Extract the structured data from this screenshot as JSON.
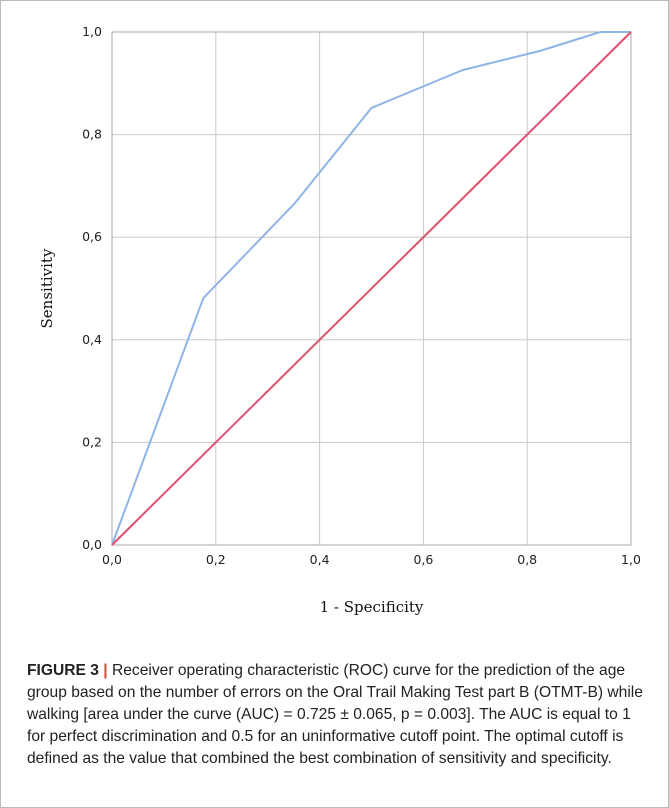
{
  "chart_data": {
    "type": "line",
    "xlabel": "1 - Specificity",
    "ylabel": "Sensitivity",
    "xlim": [
      0,
      1
    ],
    "ylim": [
      0,
      1
    ],
    "grid": true,
    "x_ticks": [
      "0,0",
      "0,2",
      "0,4",
      "0,6",
      "0,8",
      "1,0"
    ],
    "y_ticks": [
      "0,0",
      "0,2",
      "0,4",
      "0,6",
      "0,8",
      "1,0"
    ],
    "series": [
      {
        "color": "#8fb4e6",
        "points": [
          [
            0.0,
            0.0
          ],
          [
            0.176,
            0.481
          ],
          [
            0.353,
            0.667
          ],
          [
            0.5,
            0.852
          ],
          [
            0.676,
            0.926
          ],
          [
            0.824,
            0.963
          ],
          [
            0.941,
            1.0
          ],
          [
            1.0,
            1.0
          ]
        ]
      },
      {
        "color": "#e0506e",
        "points": [
          [
            0.0,
            0.0
          ],
          [
            1.0,
            1.0
          ]
        ]
      }
    ]
  },
  "caption": {
    "label": "FIGURE 3",
    "separator": "|",
    "text": "Receiver operating characteristic (ROC) curve for the prediction of the age group based on the number of errors on the Oral Trail Making Test part B (OTMT-B) while walking [area under the curve (AUC) = 0.725 ± 0.065, p = 0.003]. The AUC is equal to 1 for perfect discrimination and 0.5 for an uninformative cutoff point. The optimal cutoff is defined as the value that combined the best combination of sensitivity and specificity."
  }
}
